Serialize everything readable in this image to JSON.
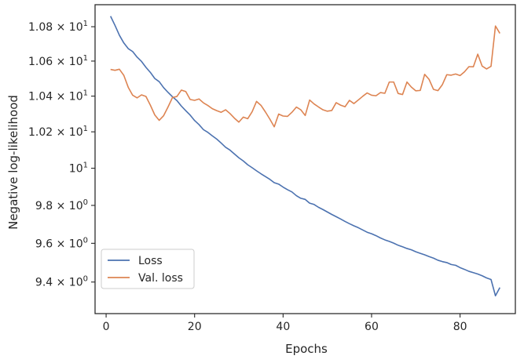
{
  "chart_data": {
    "type": "line",
    "xlabel": "Epochs",
    "ylabel": "Negative log-likelihood",
    "xlim": [
      -2.5,
      92.5
    ],
    "ylim": [
      9.24,
      10.93
    ],
    "y_scale": "log",
    "x_ticks": [
      0,
      20,
      40,
      60,
      80
    ],
    "y_ticks": [
      {
        "value": 9.4,
        "mantissa": "9.4",
        "exp": "0"
      },
      {
        "value": 9.6,
        "mantissa": "9.6",
        "exp": "0"
      },
      {
        "value": 9.8,
        "mantissa": "9.8",
        "exp": "0"
      },
      {
        "value": 10.0,
        "mantissa": "",
        "exp": "1"
      },
      {
        "value": 10.2,
        "mantissa": "1.02",
        "exp": "1"
      },
      {
        "value": 10.4,
        "mantissa": "1.04",
        "exp": "1"
      },
      {
        "value": 10.6,
        "mantissa": "1.06",
        "exp": "1"
      },
      {
        "value": 10.8,
        "mantissa": "1.08",
        "exp": "1"
      }
    ],
    "y_tick_multiply": "×",
    "y_tick_base": "10",
    "grid": false,
    "legend_position": "lower-left",
    "series": [
      {
        "name": "Loss",
        "color": "#4c72b0",
        "x_start": 1,
        "values": [
          10.862,
          10.808,
          10.75,
          10.705,
          10.672,
          10.655,
          10.623,
          10.598,
          10.564,
          10.535,
          10.5,
          10.482,
          10.448,
          10.421,
          10.396,
          10.375,
          10.344,
          10.318,
          10.293,
          10.263,
          10.24,
          10.212,
          10.197,
          10.178,
          10.16,
          10.138,
          10.115,
          10.099,
          10.078,
          10.057,
          10.04,
          10.019,
          10.003,
          9.986,
          9.97,
          9.955,
          9.94,
          9.922,
          9.914,
          9.898,
          9.884,
          9.872,
          9.852,
          9.838,
          9.832,
          9.812,
          9.805,
          9.79,
          9.778,
          9.765,
          9.752,
          9.74,
          9.728,
          9.715,
          9.703,
          9.692,
          9.682,
          9.67,
          9.658,
          9.65,
          9.64,
          9.628,
          9.618,
          9.61,
          9.601,
          9.59,
          9.582,
          9.573,
          9.566,
          9.556,
          9.548,
          9.54,
          9.531,
          9.523,
          9.512,
          9.505,
          9.5,
          9.49,
          9.486,
          9.474,
          9.465,
          9.455,
          9.448,
          9.441,
          9.432,
          9.421,
          9.413,
          9.33,
          9.372
        ]
      },
      {
        "name": "Val. loss",
        "color": "#dd8452",
        "x_start": 1,
        "values": [
          10.552,
          10.547,
          10.553,
          10.518,
          10.45,
          10.405,
          10.39,
          10.407,
          10.398,
          10.349,
          10.294,
          10.264,
          10.29,
          10.339,
          10.392,
          10.398,
          10.434,
          10.426,
          10.381,
          10.376,
          10.384,
          10.362,
          10.347,
          10.329,
          10.318,
          10.309,
          10.323,
          10.302,
          10.276,
          10.254,
          10.282,
          10.273,
          10.312,
          10.37,
          10.348,
          10.311,
          10.271,
          10.228,
          10.299,
          10.288,
          10.286,
          10.309,
          10.338,
          10.323,
          10.291,
          10.378,
          10.356,
          10.339,
          10.323,
          10.315,
          10.319,
          10.363,
          10.349,
          10.34,
          10.376,
          10.358,
          10.378,
          10.399,
          10.418,
          10.405,
          10.402,
          10.42,
          10.416,
          10.48,
          10.48,
          10.415,
          10.409,
          10.48,
          10.451,
          10.43,
          10.432,
          10.524,
          10.495,
          10.438,
          10.431,
          10.465,
          10.522,
          10.519,
          10.526,
          10.517,
          10.538,
          10.568,
          10.567,
          10.64,
          10.571,
          10.555,
          10.57,
          10.804,
          10.761
        ]
      }
    ]
  }
}
